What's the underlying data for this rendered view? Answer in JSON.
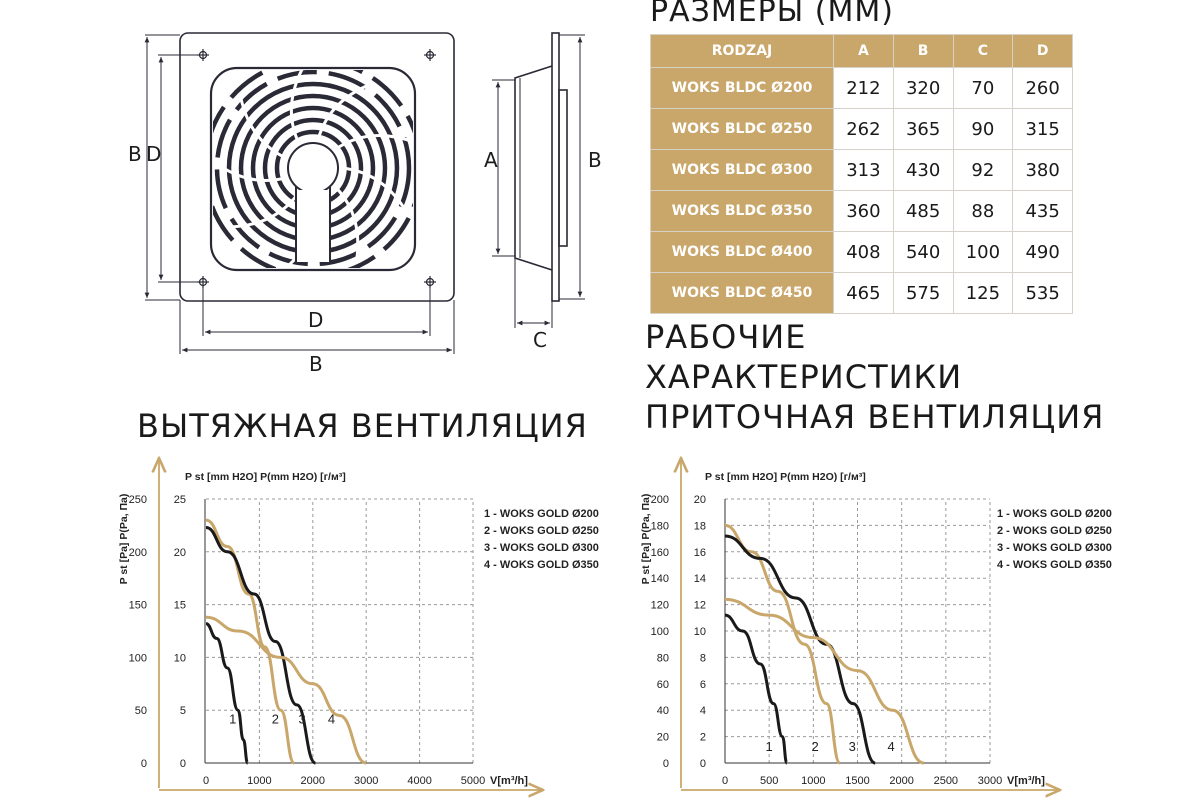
{
  "title_sizes": "РАЗМЕРЫ (ММ)",
  "title_perf_line1": "РАБОЧИЕ",
  "title_perf_line2": "ХАРАКТЕРИСТИКИ",
  "title_exhaust": "ВЫТЯЖНАЯ ВЕНТИЛЯЦИЯ",
  "title_supply": "ПРИТОЧНАЯ ВЕНТИЛЯЦИЯ",
  "drawing_labels": {
    "B": "B",
    "D": "D",
    "A": "A",
    "C": "C"
  },
  "table": {
    "headers": [
      "RODZAJ",
      "A",
      "B",
      "C",
      "D"
    ],
    "rows": [
      {
        "model": "WOKS BLDC Ø200",
        "A": "212",
        "B": "320",
        "C": "70",
        "D": "260"
      },
      {
        "model": "WOKS BLDC Ø250",
        "A": "262",
        "B": "365",
        "C": "90",
        "D": "315"
      },
      {
        "model": "WOKS BLDC Ø300",
        "A": "313",
        "B": "430",
        "C": "92",
        "D": "380"
      },
      {
        "model": "WOKS BLDC Ø350",
        "A": "360",
        "B": "485",
        "C": "88",
        "D": "435"
      },
      {
        "model": "WOKS BLDC Ø400",
        "A": "408",
        "B": "540",
        "C": "100",
        "D": "490"
      },
      {
        "model": "WOKS BLDC Ø450",
        "A": "465",
        "B": "575",
        "C": "125",
        "D": "535"
      }
    ]
  },
  "colors": {
    "gold": "#c9a76a",
    "dark": "#1a1a1a",
    "grid": "#9a9a9a"
  },
  "chart_data": [
    {
      "type": "line",
      "title": "ВЫТЯЖНАЯ ВЕНТИЛЯЦИЯ",
      "y_outer_label": "P st [Pa] P(Pa, Па)",
      "y_inner_label": "P st [mm H2O] P(mm H2O) [г/м³]",
      "xlabel": "V[m³/h]",
      "xlim": [
        0,
        5000
      ],
      "x_ticks": [
        0,
        1000,
        2000,
        3000,
        4000,
        5000
      ],
      "ylim": [
        0,
        250
      ],
      "y_ticks_pa": [
        0,
        50,
        100,
        150,
        200,
        250
      ],
      "y_ticks_mm": [
        0,
        5,
        10,
        15,
        20,
        25
      ],
      "grid": true,
      "legend": [
        "1 - WOKS GOLD Ø200",
        "2 - WOKS GOLD Ø250",
        "3 - WOKS GOLD Ø300",
        "4 - WOKS GOLD Ø350"
      ],
      "legend_position": "right",
      "series": [
        {
          "name": "1",
          "color": "dark",
          "x": [
            0,
            200,
            400,
            600,
            700,
            780
          ],
          "y": [
            132,
            118,
            90,
            50,
            22,
            0
          ]
        },
        {
          "name": "2",
          "color": "gold",
          "x": [
            0,
            400,
            800,
            1100,
            1400,
            1650
          ],
          "y": [
            230,
            205,
            160,
            110,
            50,
            0
          ]
        },
        {
          "name": "3",
          "color": "dark",
          "x": [
            0,
            400,
            900,
            1300,
            1700,
            2050
          ],
          "y": [
            223,
            200,
            160,
            115,
            55,
            0
          ]
        },
        {
          "name": "4",
          "color": "gold",
          "x": [
            0,
            600,
            1400,
            2000,
            2500,
            3000
          ],
          "y": [
            138,
            125,
            100,
            75,
            45,
            0
          ]
        }
      ],
      "curve_labels": [
        {
          "text": "1",
          "x": 500,
          "y": 42
        },
        {
          "text": "2",
          "x": 1300,
          "y": 42
        },
        {
          "text": "3",
          "x": 1800,
          "y": 42
        },
        {
          "text": "4",
          "x": 2350,
          "y": 42
        }
      ]
    },
    {
      "type": "line",
      "title": "ПРИТОЧНАЯ ВЕНТИЛЯЦИЯ",
      "y_outer_label": "P st [Pa] P(Pa, Па)",
      "y_inner_label": "P st [mm H2O] P(mm H2O) [г/м³]",
      "xlabel": "V[m³/h]",
      "xlim": [
        0,
        3000
      ],
      "x_ticks": [
        0,
        500,
        1000,
        1500,
        2000,
        2500,
        3000
      ],
      "ylim": [
        0,
        200
      ],
      "y_ticks_pa": [
        0,
        20,
        40,
        60,
        80,
        100,
        120,
        140,
        160,
        180,
        200
      ],
      "y_ticks_mm": [
        0,
        2,
        4,
        6,
        8,
        10,
        12,
        14,
        16,
        18,
        20
      ],
      "grid": true,
      "legend": [
        "1 - WOKS GOLD Ø200",
        "2 - WOKS GOLD Ø250",
        "3 - WOKS GOLD Ø300",
        "4 - WOKS GOLD Ø350"
      ],
      "legend_position": "right",
      "series": [
        {
          "name": "1",
          "color": "dark",
          "x": [
            0,
            200,
            400,
            550,
            650,
            700
          ],
          "y": [
            112,
            100,
            75,
            45,
            20,
            0
          ]
        },
        {
          "name": "2",
          "color": "gold",
          "x": [
            0,
            300,
            600,
            900,
            1150,
            1300
          ],
          "y": [
            180,
            160,
            130,
            90,
            45,
            0
          ]
        },
        {
          "name": "3",
          "color": "dark",
          "x": [
            0,
            400,
            800,
            1150,
            1450,
            1700
          ],
          "y": [
            172,
            155,
            125,
            90,
            45,
            0
          ]
        },
        {
          "name": "4",
          "color": "gold",
          "x": [
            0,
            500,
            1000,
            1500,
            1900,
            2250
          ],
          "y": [
            124,
            112,
            95,
            70,
            40,
            0
          ]
        }
      ],
      "curve_labels": [
        {
          "text": "1",
          "x": 500,
          "y": 13
        },
        {
          "text": "2",
          "x": 1020,
          "y": 13
        },
        {
          "text": "3",
          "x": 1440,
          "y": 13
        },
        {
          "text": "4",
          "x": 1880,
          "y": 13
        }
      ]
    }
  ]
}
